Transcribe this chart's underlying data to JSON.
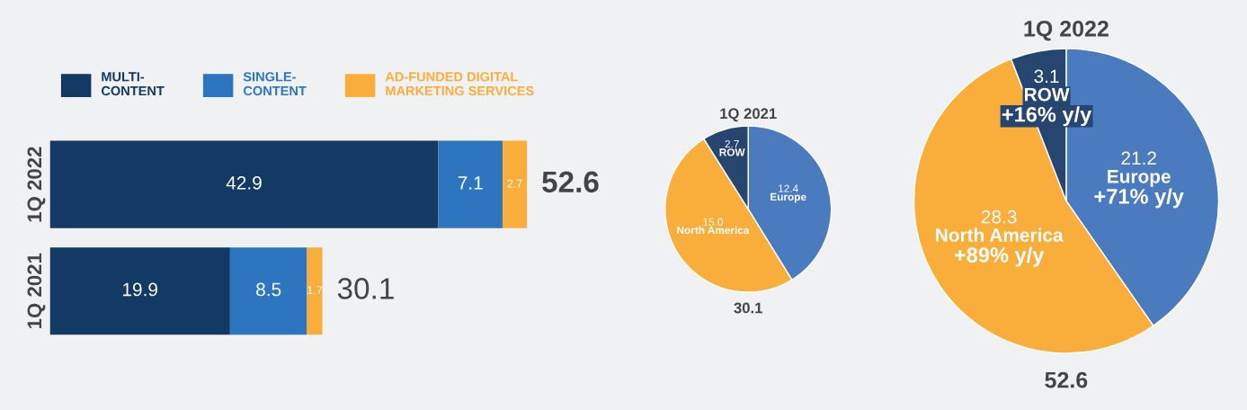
{
  "chart_data": [
    {
      "type": "bar",
      "orientation": "horizontal",
      "stacked": true,
      "categories": [
        "1Q 2022",
        "1Q 2021"
      ],
      "series": [
        {
          "name": "MULTI-CONTENT",
          "color": "#123a63",
          "values": [
            42.9,
            19.9
          ]
        },
        {
          "name": "SINGLE-CONTENT",
          "color": "#2e75bf",
          "values": [
            7.1,
            8.5
          ]
        },
        {
          "name": "AD-FUNDED DIGITAL MARKETING SERVICES",
          "color": "#f9ae3b",
          "values": [
            2.7,
            1.7
          ]
        }
      ],
      "data_labels": true,
      "totals": [
        "52.6",
        "30.1"
      ],
      "legend": "top left",
      "grid": false
    },
    {
      "type": "pie",
      "title": "1Q 2021",
      "categories": [
        "Europe",
        "North America",
        "ROW"
      ],
      "values": [
        12.4,
        15.0,
        2.7
      ],
      "colors": [
        "#4a7bbf",
        "#f9ae3b",
        "#27466f"
      ],
      "value_labels": [
        "12.4",
        "15.0",
        "2.7"
      ],
      "annotations": [
        "30.1"
      ]
    },
    {
      "type": "pie",
      "title": "1Q 2022",
      "categories": [
        "Europe",
        "North America",
        "ROW"
      ],
      "values": [
        21.2,
        28.3,
        3.1
      ],
      "colors": [
        "#4a7bbf",
        "#f9ae3b",
        "#27466f"
      ],
      "value_labels": [
        "21.2",
        "28.3",
        "3.1"
      ],
      "annotations": [
        {
          "text": "+71% y/y",
          "x": "Europe"
        },
        {
          "text": "+89% y/y",
          "x": "North America"
        },
        {
          "text": "+16% y/y",
          "x": "ROW"
        },
        "52.6"
      ]
    }
  ]
}
